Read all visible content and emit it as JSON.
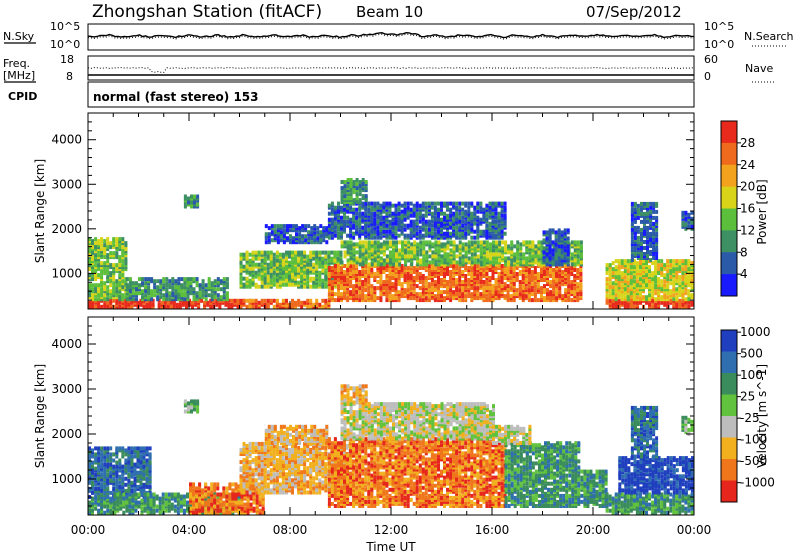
{
  "header": {
    "title": "Zhongshan Station (fitACF)",
    "beam": "Beam 10",
    "date": "07/Sep/2012"
  },
  "top_panels": {
    "nsky_label": "N.Sky",
    "nsky_ticks": [
      "10^5",
      "10^0"
    ],
    "nsearch_label": "N.Search",
    "nsearch_ticks": [
      "10^5",
      "10^0"
    ],
    "freq_label": "Freq.",
    "freq_unit": "[MHz]",
    "freq_ticks": [
      "18",
      "8"
    ],
    "nave_label": "Nave",
    "nave_ticks": [
      "60",
      "0"
    ],
    "cpid_label": "CPID",
    "cpid_value": "normal (fast stereo) 153"
  },
  "chart_data": [
    {
      "type": "heatmap",
      "name_hint": "power",
      "ylabel": "Slant Range [km]",
      "xlabel": "Time UT",
      "x_ticks": [
        "00:00",
        "04:00",
        "08:00",
        "12:00",
        "16:00",
        "20:00",
        "00:00"
      ],
      "y_ticks": [
        1000,
        2000,
        3000,
        4000
      ],
      "ylim": [
        200,
        4600
      ],
      "xlim_hours": [
        0,
        24
      ],
      "colorbar_label": "Power [dB]",
      "colorbar_ticks": [
        4,
        8,
        12,
        16,
        20,
        24,
        28
      ],
      "colorbar_colors": [
        "#1a1aff",
        "#2a5aa8",
        "#3d8f64",
        "#5cbf3c",
        "#d8d41a",
        "#f3a21d",
        "#ef6a1c",
        "#e82a1c"
      ],
      "regions": [
        {
          "t0": 0.0,
          "t1": 6.5,
          "r0": 250,
          "r1": 420,
          "level": 7
        },
        {
          "t0": 0.0,
          "t1": 1.5,
          "r0": 420,
          "r1": 1800,
          "level": 3
        },
        {
          "t0": 1.5,
          "t1": 5.5,
          "r0": 420,
          "r1": 900,
          "level": 2
        },
        {
          "t0": 3.8,
          "t1": 4.3,
          "r0": 2500,
          "r1": 2750,
          "level": 2
        },
        {
          "t0": 6.0,
          "t1": 9.5,
          "r0": 250,
          "r1": 420,
          "level": 6
        },
        {
          "t0": 6.0,
          "t1": 10.0,
          "r0": 700,
          "r1": 1500,
          "level": 3
        },
        {
          "t0": 7.0,
          "t1": 9.5,
          "r0": 1700,
          "r1": 2100,
          "level": 1
        },
        {
          "t0": 9.5,
          "t1": 19.5,
          "r0": 400,
          "r1": 1200,
          "level": 6
        },
        {
          "t0": 10.0,
          "t1": 19.5,
          "r0": 1200,
          "r1": 1700,
          "level": 3
        },
        {
          "t0": 9.5,
          "t1": 16.5,
          "r0": 1800,
          "r1": 2600,
          "level": 1
        },
        {
          "t0": 10.0,
          "t1": 11.0,
          "r0": 2600,
          "r1": 3100,
          "level": 2
        },
        {
          "t0": 18.0,
          "t1": 19.0,
          "r0": 1200,
          "r1": 2000,
          "level": 1
        },
        {
          "t0": 20.5,
          "t1": 24.0,
          "r0": 250,
          "r1": 420,
          "level": 7
        },
        {
          "t0": 20.5,
          "t1": 24.0,
          "r0": 420,
          "r1": 1300,
          "level": 4
        },
        {
          "t0": 21.5,
          "t1": 22.5,
          "r0": 1300,
          "r1": 2600,
          "level": 1
        },
        {
          "t0": 23.5,
          "t1": 24.0,
          "r0": 2000,
          "r1": 2400,
          "level": 1
        }
      ]
    },
    {
      "type": "heatmap",
      "name_hint": "velocity",
      "ylabel": "Slant Range [km]",
      "xlabel": "Time UT",
      "x_ticks": [
        "00:00",
        "04:00",
        "08:00",
        "12:00",
        "16:00",
        "20:00",
        "00:00"
      ],
      "y_ticks": [
        1000,
        2000,
        3000,
        4000
      ],
      "ylim": [
        200,
        4600
      ],
      "xlim_hours": [
        0,
        24
      ],
      "colorbar_label": "Velocity [m s^-1]",
      "colorbar_ticks": [
        1000,
        500,
        100,
        25,
        -25,
        -100,
        -500,
        -1000
      ],
      "colorbar_colors": [
        "#1f3fbf",
        "#2f6fb0",
        "#3a8c5c",
        "#61c23d",
        "#bdbdbd",
        "#f2b01e",
        "#f0761c",
        "#e6261c"
      ],
      "regions": [
        {
          "t0": 0.0,
          "t1": 1.0,
          "r0": 250,
          "r1": 600,
          "level": 2
        },
        {
          "t0": 0.0,
          "t1": 2.5,
          "r0": 600,
          "r1": 1700,
          "level": 1
        },
        {
          "t0": 1.0,
          "t1": 6.0,
          "r0": 250,
          "r1": 700,
          "level": 2
        },
        {
          "t0": 3.8,
          "t1": 4.3,
          "r0": 2500,
          "r1": 2750,
          "level": 3
        },
        {
          "t0": 4.0,
          "t1": 7.0,
          "r0": 250,
          "r1": 900,
          "level": 6
        },
        {
          "t0": 6.0,
          "t1": 10.5,
          "r0": 700,
          "r1": 1800,
          "level": 5
        },
        {
          "t0": 7.0,
          "t1": 9.5,
          "r0": 1800,
          "r1": 2200,
          "level": 5
        },
        {
          "t0": 9.5,
          "t1": 16.5,
          "r0": 400,
          "r1": 1900,
          "level": 6
        },
        {
          "t0": 10.0,
          "t1": 16.0,
          "r0": 1900,
          "r1": 2700,
          "level": 4
        },
        {
          "t0": 10.0,
          "t1": 11.0,
          "r0": 2700,
          "r1": 3100,
          "level": 5
        },
        {
          "t0": 16.5,
          "t1": 19.5,
          "r0": 400,
          "r1": 1800,
          "level": 2
        },
        {
          "t0": 16.0,
          "t1": 17.5,
          "r0": 1800,
          "r1": 2200,
          "level": 4
        },
        {
          "t0": 19.5,
          "t1": 20.5,
          "r0": 400,
          "r1": 1200,
          "level": 2
        },
        {
          "t0": 20.5,
          "t1": 24.0,
          "r0": 250,
          "r1": 700,
          "level": 2
        },
        {
          "t0": 21.0,
          "t1": 24.0,
          "r0": 700,
          "r1": 1500,
          "level": 0
        },
        {
          "t0": 21.5,
          "t1": 22.5,
          "r0": 1500,
          "r1": 2600,
          "level": 1
        },
        {
          "t0": 23.5,
          "t1": 24.0,
          "r0": 2000,
          "r1": 2400,
          "level": 3
        }
      ]
    }
  ]
}
